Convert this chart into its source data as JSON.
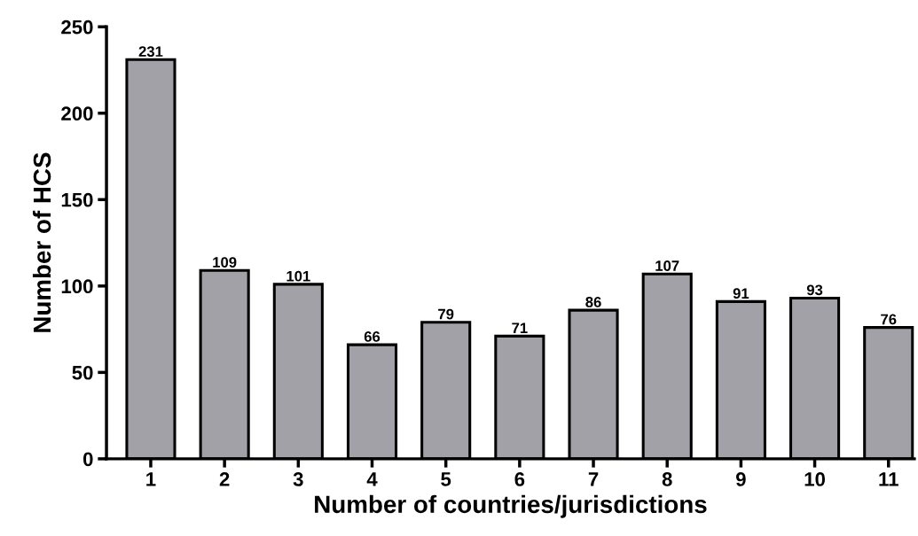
{
  "chart_data": {
    "type": "bar",
    "xlabel": "Number of countries/jurisdictions",
    "ylabel": "Number of HCS",
    "categories": [
      "1",
      "2",
      "3",
      "4",
      "5",
      "6",
      "7",
      "8",
      "9",
      "10",
      "11"
    ],
    "values": [
      231,
      109,
      101,
      66,
      79,
      71,
      86,
      107,
      91,
      93,
      76
    ],
    "color": "#a2a1a8",
    "data_labels": true,
    "ylim": [
      0,
      250
    ],
    "yticks": [
      0,
      50,
      100,
      150,
      200,
      250
    ],
    "grid": false,
    "legend": false
  }
}
